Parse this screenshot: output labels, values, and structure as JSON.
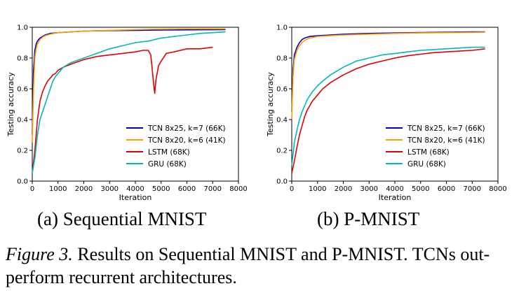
{
  "caption": {
    "label": "Figure 3.",
    "text": "Results on Sequential MNIST and P-MNIST. TCNs out-perform recurrent architectures."
  },
  "chart_data": [
    {
      "type": "line",
      "subcaption": "(a) Sequential MNIST",
      "xlabel": "Iteration",
      "ylabel": "Testing accuracy",
      "xlim": [
        0,
        8000
      ],
      "ylim": [
        0,
        1.0
      ],
      "xticks": [
        "0",
        "1000",
        "2000",
        "3000",
        "4000",
        "5000",
        "6000",
        "7000",
        "8000"
      ],
      "yticks": [
        "0.0",
        "0.2",
        "0.4",
        "0.6",
        "0.8",
        "1.0"
      ],
      "grid": false,
      "legend": "lower-right",
      "series": [
        {
          "name": "TCN 8x25, k=7 (66K)",
          "color": "#0000cc",
          "x": [
            0,
            50,
            100,
            150,
            200,
            300,
            400,
            500,
            700,
            1000,
            1500,
            2000,
            3000,
            4000,
            5000,
            6000,
            7000,
            7500
          ],
          "y": [
            0.3,
            0.72,
            0.85,
            0.89,
            0.91,
            0.93,
            0.94,
            0.95,
            0.96,
            0.965,
            0.97,
            0.975,
            0.978,
            0.98,
            0.982,
            0.983,
            0.984,
            0.985
          ]
        },
        {
          "name": "TCN 8x20, k=6 (41K)",
          "color": "#ff9f00",
          "x": [
            0,
            50,
            100,
            150,
            200,
            300,
            400,
            500,
            700,
            1000,
            1500,
            2000,
            3000,
            4000,
            5000,
            6000,
            7000,
            7500
          ],
          "y": [
            0.25,
            0.6,
            0.8,
            0.86,
            0.89,
            0.92,
            0.935,
            0.945,
            0.955,
            0.965,
            0.97,
            0.975,
            0.98,
            0.985,
            0.988,
            0.99,
            0.99,
            0.99
          ]
        },
        {
          "name": "LSTM (68K)",
          "color": "#e00000",
          "x": [
            0,
            100,
            200,
            300,
            400,
            500,
            600,
            700,
            800,
            900,
            1000,
            1200,
            1500,
            2000,
            2500,
            3000,
            3500,
            4000,
            4300,
            4500,
            4600,
            4700,
            4750,
            4800,
            4900,
            5000,
            5200,
            5500,
            6000,
            6500,
            7000
          ],
          "y": [
            0.05,
            0.2,
            0.4,
            0.52,
            0.58,
            0.62,
            0.65,
            0.67,
            0.69,
            0.7,
            0.72,
            0.74,
            0.76,
            0.79,
            0.81,
            0.82,
            0.83,
            0.84,
            0.85,
            0.85,
            0.82,
            0.65,
            0.57,
            0.66,
            0.75,
            0.78,
            0.83,
            0.84,
            0.86,
            0.86,
            0.87
          ]
        },
        {
          "name": "GRU (68K)",
          "color": "#00b8b8",
          "x": [
            0,
            100,
            200,
            300,
            400,
            500,
            600,
            700,
            800,
            900,
            1000,
            1200,
            1500,
            2000,
            2500,
            3000,
            3500,
            4000,
            4500,
            5000,
            5500,
            6000,
            6500,
            7000,
            7500
          ],
          "y": [
            0.05,
            0.15,
            0.3,
            0.4,
            0.45,
            0.5,
            0.55,
            0.6,
            0.65,
            0.68,
            0.7,
            0.74,
            0.77,
            0.8,
            0.83,
            0.86,
            0.88,
            0.9,
            0.91,
            0.93,
            0.94,
            0.95,
            0.96,
            0.965,
            0.97
          ]
        }
      ]
    },
    {
      "type": "line",
      "subcaption": "(b) P-MNIST",
      "xlabel": "Iteration",
      "ylabel": "Testing accuracy",
      "xlim": [
        0,
        8000
      ],
      "ylim": [
        0,
        1.0
      ],
      "xticks": [
        "0",
        "1000",
        "2000",
        "3000",
        "4000",
        "5000",
        "6000",
        "7000",
        "8000"
      ],
      "yticks": [
        "0.0",
        "0.2",
        "0.4",
        "0.6",
        "0.8",
        "1.0"
      ],
      "grid": false,
      "legend": "lower-right",
      "series": [
        {
          "name": "TCN 8x25, k=7 (66K)",
          "color": "#0000cc",
          "x": [
            0,
            50,
            100,
            200,
            300,
            400,
            500,
            700,
            1000,
            1500,
            2000,
            3000,
            4000,
            5000,
            6000,
            7000,
            7500
          ],
          "y": [
            0.45,
            0.72,
            0.82,
            0.87,
            0.9,
            0.92,
            0.93,
            0.94,
            0.945,
            0.95,
            0.955,
            0.96,
            0.963,
            0.966,
            0.968,
            0.97,
            0.97
          ]
        },
        {
          "name": "TCN 8x20, k=6 (41K)",
          "color": "#ff9f00",
          "x": [
            0,
            50,
            100,
            200,
            300,
            400,
            500,
            700,
            1000,
            1500,
            2000,
            3000,
            4000,
            5000,
            6000,
            7000,
            7500
          ],
          "y": [
            0.4,
            0.68,
            0.79,
            0.85,
            0.88,
            0.9,
            0.915,
            0.93,
            0.94,
            0.945,
            0.95,
            0.955,
            0.96,
            0.963,
            0.965,
            0.967,
            0.968
          ]
        },
        {
          "name": "LSTM (68K)",
          "color": "#e00000",
          "x": [
            0,
            100,
            200,
            300,
            400,
            500,
            600,
            800,
            1000,
            1200,
            1500,
            2000,
            2500,
            3000,
            3500,
            4000,
            4500,
            5000,
            5500,
            6000,
            6500,
            7000,
            7500
          ],
          "y": [
            0.05,
            0.13,
            0.22,
            0.3,
            0.36,
            0.42,
            0.46,
            0.52,
            0.56,
            0.6,
            0.64,
            0.69,
            0.73,
            0.76,
            0.78,
            0.8,
            0.815,
            0.825,
            0.835,
            0.84,
            0.845,
            0.85,
            0.86
          ]
        },
        {
          "name": "GRU (68K)",
          "color": "#00b8b8",
          "x": [
            0,
            100,
            200,
            300,
            400,
            500,
            600,
            800,
            1000,
            1200,
            1500,
            2000,
            2500,
            3000,
            3500,
            4000,
            4500,
            5000,
            5500,
            6000,
            6500,
            7000,
            7500
          ],
          "y": [
            0.1,
            0.25,
            0.33,
            0.4,
            0.45,
            0.49,
            0.53,
            0.58,
            0.62,
            0.65,
            0.69,
            0.74,
            0.78,
            0.8,
            0.82,
            0.83,
            0.84,
            0.85,
            0.855,
            0.86,
            0.865,
            0.87,
            0.87
          ]
        }
      ]
    }
  ]
}
